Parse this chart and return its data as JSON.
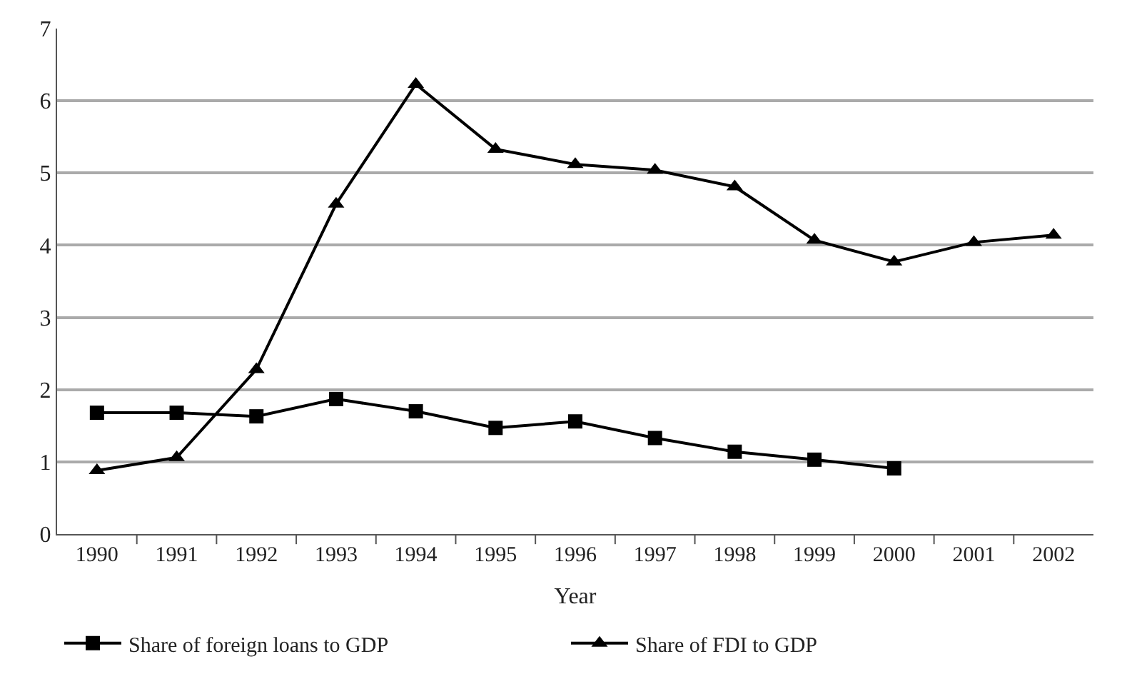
{
  "chart_data": {
    "type": "line",
    "xlabel": "Year",
    "categories": [
      "1990",
      "1991",
      "1992",
      "1993",
      "1994",
      "1995",
      "1996",
      "1997",
      "1998",
      "1999",
      "2000",
      "2001",
      "2002"
    ],
    "series": [
      {
        "name": "Share of foreign loans to GDP",
        "color": "#000000",
        "marker": "square",
        "values": [
          1.68,
          1.68,
          1.63,
          1.87,
          1.7,
          1.47,
          1.56,
          1.33,
          1.14,
          1.03,
          0.91,
          null,
          null
        ]
      },
      {
        "name": "Share of FDI to GDP",
        "color": "#000000",
        "marker": "triangle",
        "values": [
          0.88,
          1.06,
          2.28,
          4.57,
          6.23,
          5.33,
          5.12,
          5.04,
          4.81,
          4.07,
          3.77,
          4.04,
          4.14
        ]
      }
    ],
    "ylim": [
      0,
      7
    ],
    "yticks": [
      0,
      1,
      2,
      3,
      4,
      5,
      6,
      7
    ],
    "grid": "y",
    "legend": "bottom",
    "line_style": "solid"
  }
}
